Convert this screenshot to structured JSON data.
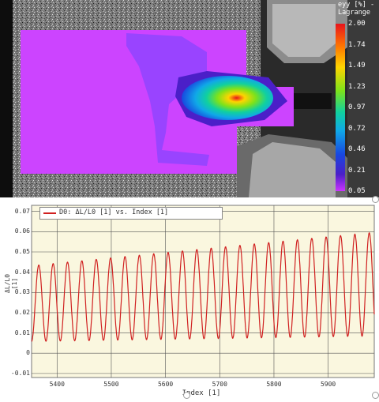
{
  "image_panel": {
    "colorbar": {
      "title_line1": "eyy [%] -",
      "title_line2": "Lagrange",
      "ticks": [
        "2.00",
        "1.74",
        "1.49",
        "1.23",
        "0.97",
        "0.72",
        "0.46",
        "0.21",
        "0.05"
      ],
      "colors": [
        "#e8141c",
        "#ff7a00",
        "#ffd400",
        "#7ee21a",
        "#10d0a0",
        "#10a8e8",
        "#1848e0",
        "#4b1fc8",
        "#cc33ff"
      ]
    },
    "colors": {
      "background_strain": "#cc44ff",
      "specimen_dark": "#1a1a1a"
    }
  },
  "plot": {
    "legend": "D0: ΔL/L0 [1] vs. Index [1]",
    "x_label": "Index [1]",
    "y_label": "ΔL/L0 [1]",
    "y_ticks": [
      "0.07",
      "0.06",
      "0.05",
      "0.04",
      "0.03",
      "0.02",
      "0.01",
      "0",
      "-0.01"
    ],
    "x_ticks": [
      "5400",
      "5500",
      "5600",
      "5700",
      "5800",
      "5900"
    ],
    "line_color": "#d02020",
    "background": "#faf7df",
    "grid_color": "#555555"
  },
  "chart_data": {
    "type": "line",
    "xlabel": "Index [1]",
    "ylabel": "ΔL/L0 [1]",
    "xlim": [
      5353,
      5985
    ],
    "ylim": [
      -0.012,
      0.073
    ],
    "series": [
      {
        "name": "D0: ΔL/L0 [1] vs. Index [1]",
        "period": 26.5,
        "x_start": 5353,
        "x_end": 5985,
        "min_start": 0.0058,
        "min_end": 0.0085,
        "max_start": 0.0432,
        "max_end": 0.0597
      }
    ]
  }
}
